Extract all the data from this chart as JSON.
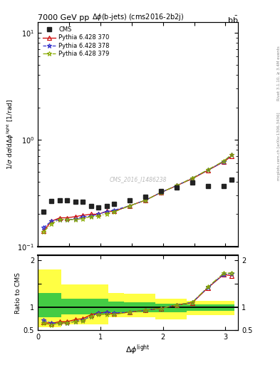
{
  "title_left": "7000 GeV pp",
  "title_right": "b$\\bar{\\mathrm{b}}$",
  "plot_title": "$\\Delta\\phi$(b-jets) (cms2016-2b2j)",
  "watermark": "CMS_2016_I1486238",
  "right_label_top": "Rivet 3.1.10, ≥ 3.4M events",
  "right_label_bot": "mcplots.cern.ch [arXiv:1306.3436]",
  "ylabel_main": "1/$\\sigma$ d$\\sigma$/d$\\Delta\\phi^{\\mathrm{light}}$ [1/rad]",
  "ylabel_ratio": "Ratio to CMS",
  "xlabel": "$\\Delta\\phi^{\\mathrm{light}}$",
  "ylim_main_log": [
    -1,
    1.1
  ],
  "ylim_ratio": [
    0.5,
    2.1
  ],
  "xlim": [
    0.0,
    3.2
  ],
  "cms_x": [
    0.094,
    0.22,
    0.35,
    0.47,
    0.6,
    0.72,
    0.85,
    0.97,
    1.1,
    1.22,
    1.47,
    1.72,
    1.97,
    2.22,
    2.47,
    2.72,
    2.97,
    3.1
  ],
  "cms_y": [
    0.21,
    0.265,
    0.27,
    0.27,
    0.26,
    0.26,
    0.24,
    0.23,
    0.24,
    0.25,
    0.27,
    0.29,
    0.33,
    0.355,
    0.395,
    0.365,
    0.365,
    0.42
  ],
  "py370_x": [
    0.094,
    0.22,
    0.35,
    0.47,
    0.6,
    0.72,
    0.85,
    0.97,
    1.1,
    1.22,
    1.47,
    1.72,
    1.97,
    2.22,
    2.47,
    2.72,
    2.97,
    3.1
  ],
  "py370_y": [
    0.14,
    0.172,
    0.185,
    0.185,
    0.19,
    0.195,
    0.2,
    0.2,
    0.213,
    0.213,
    0.24,
    0.27,
    0.32,
    0.37,
    0.43,
    0.515,
    0.618,
    0.7
  ],
  "py378_x": [
    0.094,
    0.22,
    0.35,
    0.47,
    0.6,
    0.72,
    0.85,
    0.97,
    1.1,
    1.22,
    1.47,
    1.72,
    1.97,
    2.22,
    2.47,
    2.72,
    2.97,
    3.1
  ],
  "py378_y": [
    0.15,
    0.173,
    0.178,
    0.178,
    0.18,
    0.188,
    0.192,
    0.2,
    0.212,
    0.218,
    0.24,
    0.27,
    0.32,
    0.37,
    0.435,
    0.518,
    0.62,
    0.72
  ],
  "py379_x": [
    0.094,
    0.22,
    0.35,
    0.47,
    0.6,
    0.72,
    0.85,
    0.97,
    1.1,
    1.22,
    1.47,
    1.72,
    1.97,
    2.22,
    2.47,
    2.72,
    2.97,
    3.1
  ],
  "py379_y": [
    0.137,
    0.163,
    0.178,
    0.178,
    0.178,
    0.182,
    0.19,
    0.192,
    0.202,
    0.21,
    0.24,
    0.27,
    0.32,
    0.37,
    0.435,
    0.522,
    0.628,
    0.725
  ],
  "ratio370_y": [
    0.667,
    0.649,
    0.685,
    0.685,
    0.731,
    0.75,
    0.833,
    0.87,
    0.888,
    0.852,
    0.889,
    0.931,
    0.97,
    1.042,
    1.089,
    1.411,
    1.693,
    1.667
  ],
  "ratio378_y": [
    0.714,
    0.653,
    0.659,
    0.659,
    0.692,
    0.723,
    0.8,
    0.87,
    0.883,
    0.872,
    0.889,
    0.931,
    0.97,
    1.042,
    1.101,
    1.419,
    1.699,
    1.714
  ],
  "ratio379_y": [
    0.652,
    0.615,
    0.659,
    0.659,
    0.685,
    0.7,
    0.792,
    0.835,
    0.842,
    0.84,
    0.889,
    0.931,
    0.97,
    1.042,
    1.101,
    1.429,
    1.721,
    1.726
  ],
  "band_yellow_x": [
    0.0,
    0.13,
    0.38,
    0.63,
    1.13,
    1.38,
    1.88,
    2.38,
    2.63,
    3.14
  ],
  "band_yellow_lo": [
    0.57,
    0.57,
    0.63,
    0.63,
    0.78,
    0.78,
    0.74,
    0.83,
    0.83,
    0.83
  ],
  "band_yellow_hi": [
    1.8,
    1.8,
    1.48,
    1.48,
    1.3,
    1.28,
    1.18,
    1.13,
    1.13,
    1.13
  ],
  "band_green_x": [
    0.0,
    0.13,
    0.38,
    0.63,
    1.13,
    1.38,
    1.88,
    2.38,
    2.63,
    3.14
  ],
  "band_green_lo": [
    0.78,
    0.78,
    0.84,
    0.84,
    0.88,
    0.88,
    0.88,
    0.92,
    0.92,
    0.92
  ],
  "band_green_hi": [
    1.3,
    1.3,
    1.18,
    1.18,
    1.12,
    1.1,
    1.07,
    1.06,
    1.06,
    1.06
  ],
  "color_cms": "#222222",
  "color_370": "#cc0000",
  "color_378": "#3333cc",
  "color_379": "#88aa00",
  "color_yellow": "#ffff44",
  "color_green": "#44cc44",
  "bg_color": "#ffffff"
}
